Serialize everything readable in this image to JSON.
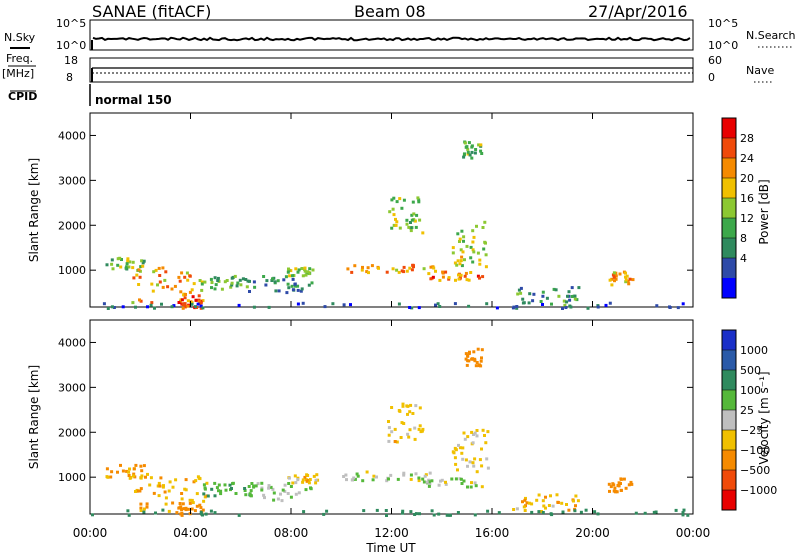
{
  "header": {
    "station": "SANAE (fitACF)",
    "beam": "Beam 08",
    "date": "27/Apr/2016"
  },
  "nsky": {
    "label": "N.Sky",
    "ticks": [
      "10^5",
      "10^0"
    ],
    "right_label": "N.Search",
    "right_ticks": [
      "10^5",
      "10^0"
    ]
  },
  "freq": {
    "label_top": "Freq.",
    "label_bottom": "[MHz]",
    "ticks": [
      "18",
      "8"
    ],
    "right_label": "Nave",
    "right_ticks": [
      "60",
      "0"
    ]
  },
  "cpid": {
    "label": "CPID",
    "value": "normal 150"
  },
  "x_axis": {
    "label": "Time UT",
    "ticks": [
      "00:00",
      "04:00",
      "08:00",
      "12:00",
      "16:00",
      "20:00",
      "00:00"
    ],
    "hours": [
      0,
      4,
      8,
      12,
      16,
      20,
      24
    ]
  },
  "power_panel": {
    "ylabel": "Slant Range [km]",
    "yticks": [
      "4000",
      "3000",
      "2000",
      "1000"
    ],
    "yvalues": [
      4000,
      3000,
      2000,
      1000
    ],
    "colorbar_label": "Power [dB]",
    "colorbar_ticks": [
      "28",
      "24",
      "20",
      "16",
      "12",
      "8",
      "4"
    ],
    "colors": [
      "#0000ff",
      "#2e4aa8",
      "#2f8a5e",
      "#3ca84a",
      "#8cc832",
      "#f0c000",
      "#f58a00",
      "#f04a0a",
      "#e80000"
    ]
  },
  "velocity_panel": {
    "ylabel": "Slant Range [km]",
    "yticks": [
      "4000",
      "3000",
      "2000",
      "1000"
    ],
    "yvalues": [
      4000,
      3000,
      2000,
      1000
    ],
    "colorbar_label": "Velocity [m s⁻¹]",
    "colorbar_ticks": [
      "1000",
      "500",
      "100",
      "25",
      "−25",
      "−100",
      "−500",
      "−1000"
    ],
    "colors": [
      "#1a2fc8",
      "#2a5aa8",
      "#2f8a5e",
      "#55b83a",
      "#bfbfbf",
      "#f0c000",
      "#f58a00",
      "#f04a0a",
      "#e80000"
    ]
  },
  "chart_data": {
    "type": "heatmap",
    "x": "time (UT hours)",
    "xlim": [
      0,
      24
    ],
    "ylim": [
      180,
      4500
    ],
    "patches": [
      {
        "t0": 0.6,
        "t1": 2.2,
        "r0": 1000,
        "r1": 1300,
        "power": 14,
        "velocity": -120
      },
      {
        "t0": 1.6,
        "t1": 4.6,
        "r0": 250,
        "r1": 1100,
        "power": 22,
        "velocity": -80
      },
      {
        "t0": 3.4,
        "t1": 4.4,
        "r0": 180,
        "r1": 450,
        "power": 28,
        "velocity": -300
      },
      {
        "t0": 4.4,
        "t1": 6.4,
        "r0": 600,
        "r1": 900,
        "power": 12,
        "velocity": 80
      },
      {
        "t0": 6.2,
        "t1": 8.8,
        "r0": 500,
        "r1": 900,
        "power": 9,
        "velocity": 40
      },
      {
        "t0": 7.8,
        "t1": 9.0,
        "r0": 900,
        "r1": 1100,
        "power": 16,
        "velocity": -60
      },
      {
        "t0": 10.0,
        "t1": 14.2,
        "r0": 950,
        "r1": 1150,
        "power": 22,
        "velocity": 10
      },
      {
        "t0": 13.2,
        "t1": 15.6,
        "r0": 800,
        "r1": 1000,
        "power": 24,
        "velocity": 15
      },
      {
        "t0": 14.4,
        "t1": 15.8,
        "r0": 1100,
        "r1": 2100,
        "power": 17,
        "velocity": -40
      },
      {
        "t0": 14.8,
        "t1": 15.6,
        "r0": 3500,
        "r1": 3900,
        "power": 13,
        "velocity": -200
      },
      {
        "t0": 11.8,
        "t1": 13.2,
        "r0": 1800,
        "r1": 2700,
        "power": 15,
        "velocity": -60
      },
      {
        "t0": 16.8,
        "t1": 19.4,
        "r0": 250,
        "r1": 650,
        "power": 11,
        "velocity": -80
      },
      {
        "t0": 20.6,
        "t1": 21.6,
        "r0": 700,
        "r1": 1000,
        "power": 22,
        "velocity": -300
      },
      {
        "t0": 0.0,
        "t1": 24.0,
        "r0": 180,
        "r1": 300,
        "power": 6,
        "velocity": 200
      }
    ]
  }
}
